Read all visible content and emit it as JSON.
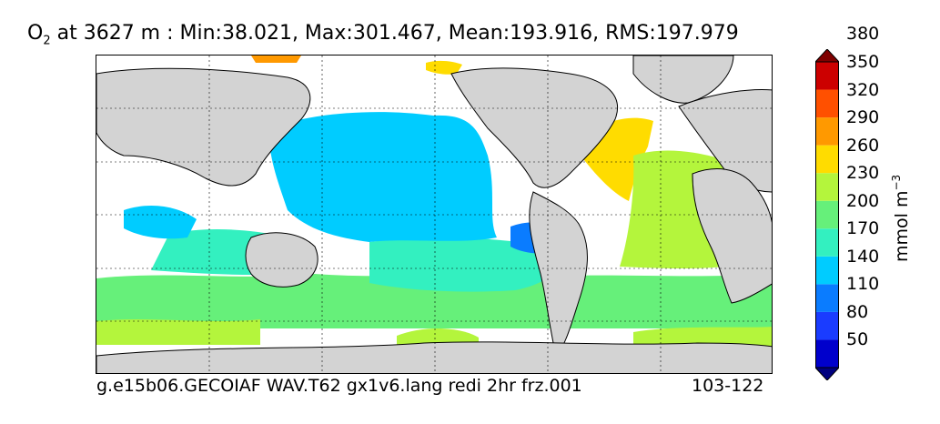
{
  "title": {
    "species": "O",
    "species_sub": "2",
    "text": " at 3627 m : Min:38.021, Max:301.467, Mean:193.916, RMS:197.979"
  },
  "footer": {
    "case_name": "g.e15b06.GECOIAF WAV.T62 gx1v6.lang redi 2hr frz.001",
    "years": "103-122"
  },
  "colorbar": {
    "unit_text": "mmol m",
    "unit_exp": "−3",
    "levels": [
      "50",
      "80",
      "110",
      "140",
      "170",
      "200",
      "230",
      "260",
      "290",
      "320",
      "350",
      "380"
    ],
    "colors": [
      "#00007f",
      "#0000cc",
      "#1a3cff",
      "#0a7cff",
      "#00ccff",
      "#33f0c0",
      "#66f07a",
      "#b4f53c",
      "#ffdc00",
      "#ff9900",
      "#ff5000",
      "#cc0000",
      "#7f0000"
    ]
  },
  "chart_data": {
    "type": "heatmap",
    "title": "O2 at 3627 m : Min:38.021, Max:301.467, Mean:193.916, RMS:197.979",
    "variable": "O2",
    "depth": "3627 m",
    "stats": {
      "min": 38.021,
      "max": 301.467,
      "mean": 193.916,
      "rms": 197.979
    },
    "unit": "mmol m^-3",
    "contour_levels": [
      50,
      80,
      110,
      140,
      170,
      200,
      230,
      260,
      290,
      320,
      350,
      380
    ],
    "colorbar_extend": "both",
    "projection": "global lat-lon",
    "grid": true,
    "land_color": "#d3d3d3"
  }
}
